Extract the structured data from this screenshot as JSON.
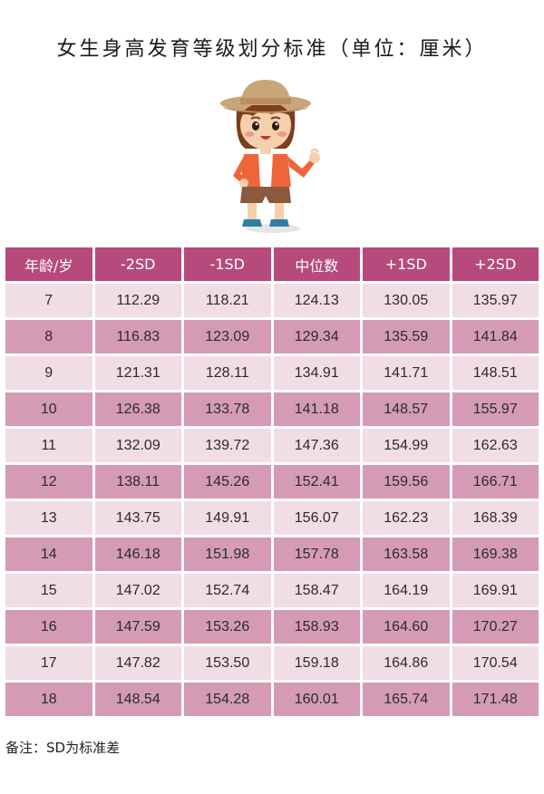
{
  "title": "女生身高发育等级划分标准（单位：厘米）",
  "mascot_icon": "cartoon-girl-with-hat",
  "colors": {
    "header": "#b64a7c",
    "row_light": "#f1dde5",
    "row_dark": "#d59bb4"
  },
  "table": {
    "headers": [
      "年龄/岁",
      "-2SD",
      "-1SD",
      "中位数",
      "+1SD",
      "+2SD"
    ],
    "rows": [
      [
        "7",
        "112.29",
        "118.21",
        "124.13",
        "130.05",
        "135.97"
      ],
      [
        "8",
        "116.83",
        "123.09",
        "129.34",
        "135.59",
        "141.84"
      ],
      [
        "9",
        "121.31",
        "128.11",
        "134.91",
        "141.71",
        "148.51"
      ],
      [
        "10",
        "126.38",
        "133.78",
        "141.18",
        "148.57",
        "155.97"
      ],
      [
        "11",
        "132.09",
        "139.72",
        "147.36",
        "154.99",
        "162.63"
      ],
      [
        "12",
        "138.11",
        "145.26",
        "152.41",
        "159.56",
        "166.71"
      ],
      [
        "13",
        "143.75",
        "149.91",
        "156.07",
        "162.23",
        "168.39"
      ],
      [
        "14",
        "146.18",
        "151.98",
        "157.78",
        "163.58",
        "169.38"
      ],
      [
        "15",
        "147.02",
        "152.74",
        "158.47",
        "164.19",
        "169.91"
      ],
      [
        "16",
        "147.59",
        "153.26",
        "158.93",
        "164.60",
        "170.27"
      ],
      [
        "17",
        "147.82",
        "153.50",
        "159.18",
        "164.86",
        "170.54"
      ],
      [
        "18",
        "148.54",
        "154.28",
        "160.01",
        "165.74",
        "171.48"
      ]
    ]
  },
  "note": "备注：SD为标准差"
}
